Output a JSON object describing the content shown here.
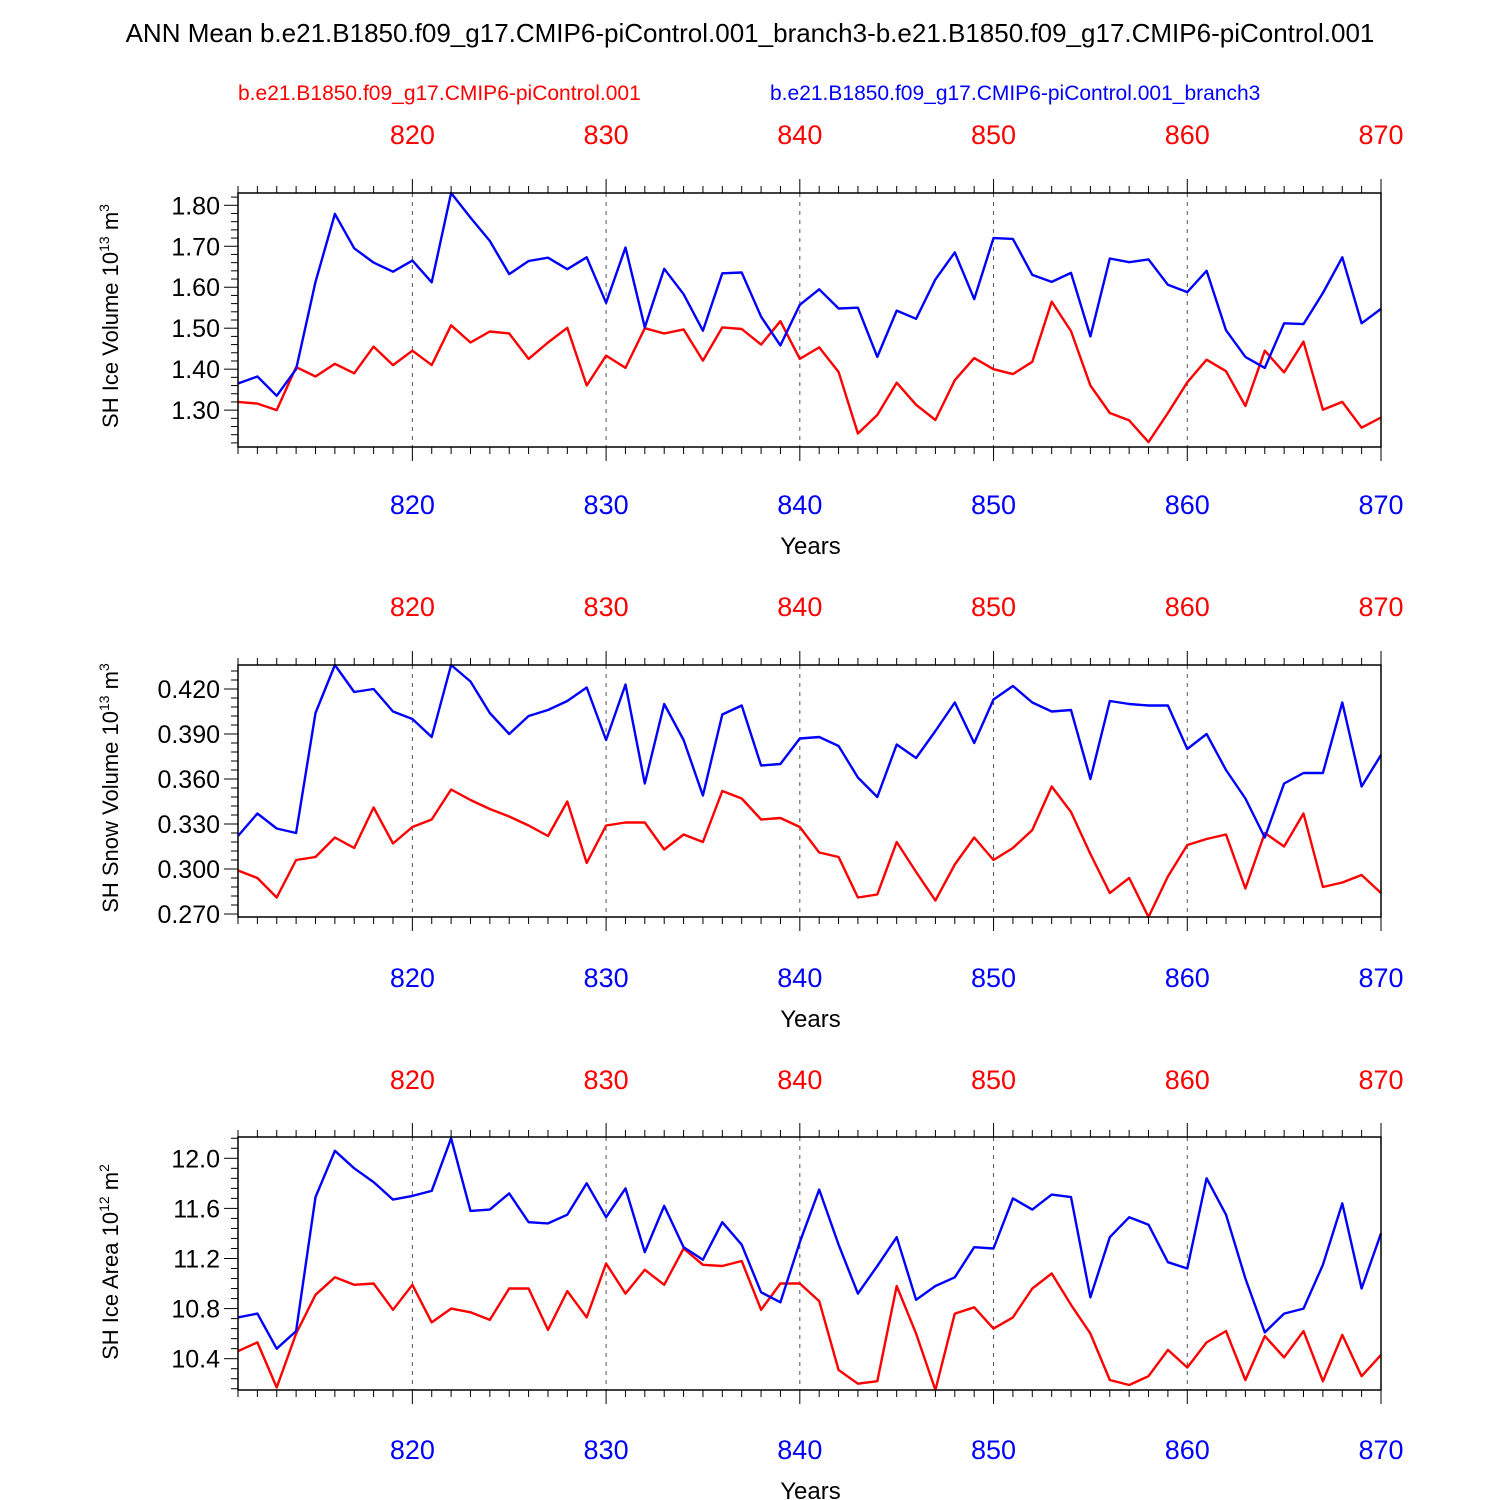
{
  "title": "ANN Mean b.e21.B1850.f09_g17.CMIP6-piControl.001_branch3-b.e21.B1850.f09_g17.CMIP6-piControl.001",
  "legend": {
    "red": "b.e21.B1850.f09_g17.CMIP6-piControl.001",
    "blue": "b.e21.B1850.f09_g17.CMIP6-piControl.001_branch3"
  },
  "colors": {
    "red": "#ff0000",
    "blue": "#0000ff",
    "grid": "#555555"
  },
  "chart_data": [
    {
      "type": "line",
      "ylabel_main": "SH Ice Volume 10",
      "ylabel_sup": "13",
      "ylabel_unit": " m",
      "ylabel_unit_sup": "3",
      "xlabel": "Years",
      "xlim": [
        811,
        870
      ],
      "ylim": [
        1.21,
        1.83
      ],
      "yticks": [
        1.3,
        1.4,
        1.5,
        1.6,
        1.7,
        1.8
      ],
      "ytick_labels": [
        "1.30",
        "1.40",
        "1.50",
        "1.60",
        "1.70",
        "1.80"
      ],
      "yminor_step": 0.02,
      "xticks": [
        820,
        830,
        840,
        850,
        860,
        870
      ],
      "xtick_labels": [
        "820",
        "830",
        "840",
        "850",
        "860",
        "870"
      ],
      "grid": "vertical dashed at major x ticks",
      "x": [
        811,
        812,
        813,
        814,
        815,
        816,
        817,
        818,
        819,
        820,
        821,
        822,
        823,
        824,
        825,
        826,
        827,
        828,
        829,
        830,
        831,
        832,
        833,
        834,
        835,
        836,
        837,
        838,
        839,
        840,
        841,
        842,
        843,
        844,
        845,
        846,
        847,
        848,
        849,
        850,
        851,
        852,
        853,
        854,
        855,
        856,
        857,
        858,
        859,
        860,
        861,
        862,
        863,
        864,
        865,
        866,
        867,
        868,
        869,
        870
      ],
      "series": [
        {
          "name": "b.e21.B1850.f09_g17.CMIP6-piControl.001",
          "color": "red",
          "values": [
            1.32,
            1.316,
            1.3,
            1.405,
            1.382,
            1.413,
            1.39,
            1.455,
            1.41,
            1.445,
            1.41,
            1.507,
            1.465,
            1.492,
            1.487,
            1.425,
            1.465,
            1.501,
            1.36,
            1.433,
            1.403,
            1.5,
            1.487,
            1.497,
            1.421,
            1.502,
            1.498,
            1.46,
            1.517,
            1.425,
            1.453,
            1.393,
            1.243,
            1.288,
            1.367,
            1.313,
            1.276,
            1.373,
            1.427,
            1.4,
            1.388,
            1.418,
            1.565,
            1.493,
            1.36,
            1.293,
            1.275,
            1.222,
            1.293,
            1.368,
            1.423,
            1.395,
            1.31,
            1.445,
            1.392,
            1.467,
            1.301,
            1.32,
            1.257,
            1.282
          ]
        },
        {
          "name": "b.e21.B1850.f09_g17.CMIP6-piControl.001_branch3",
          "color": "blue",
          "values": [
            1.365,
            1.382,
            1.335,
            1.4,
            1.613,
            1.779,
            1.695,
            1.66,
            1.638,
            1.665,
            1.612,
            1.83,
            1.77,
            1.713,
            1.632,
            1.664,
            1.672,
            1.644,
            1.673,
            1.562,
            1.697,
            1.502,
            1.645,
            1.583,
            1.494,
            1.634,
            1.636,
            1.528,
            1.458,
            1.557,
            1.595,
            1.548,
            1.55,
            1.43,
            1.543,
            1.523,
            1.619,
            1.685,
            1.571,
            1.72,
            1.718,
            1.63,
            1.613,
            1.635,
            1.48,
            1.67,
            1.661,
            1.668,
            1.606,
            1.588,
            1.64,
            1.495,
            1.43,
            1.403,
            1.512,
            1.51,
            1.586,
            1.673,
            1.512,
            1.547
          ]
        }
      ]
    },
    {
      "type": "line",
      "ylabel_main": "SH Snow Volume 10",
      "ylabel_sup": "13",
      "ylabel_unit": " m",
      "ylabel_unit_sup": "3",
      "xlabel": "Years",
      "xlim": [
        811,
        870
      ],
      "ylim": [
        0.268,
        0.436
      ],
      "yticks": [
        0.27,
        0.3,
        0.33,
        0.36,
        0.39,
        0.42
      ],
      "ytick_labels": [
        "0.270",
        "0.300",
        "0.330",
        "0.360",
        "0.390",
        "0.420"
      ],
      "yminor_step": 0.006,
      "xticks": [
        820,
        830,
        840,
        850,
        860,
        870
      ],
      "xtick_labels": [
        "820",
        "830",
        "840",
        "850",
        "860",
        "870"
      ],
      "grid": "vertical dashed at major x ticks",
      "x": [
        811,
        812,
        813,
        814,
        815,
        816,
        817,
        818,
        819,
        820,
        821,
        822,
        823,
        824,
        825,
        826,
        827,
        828,
        829,
        830,
        831,
        832,
        833,
        834,
        835,
        836,
        837,
        838,
        839,
        840,
        841,
        842,
        843,
        844,
        845,
        846,
        847,
        848,
        849,
        850,
        851,
        852,
        853,
        854,
        855,
        856,
        857,
        858,
        859,
        860,
        861,
        862,
        863,
        864,
        865,
        866,
        867,
        868,
        869,
        870
      ],
      "series": [
        {
          "name": "b.e21.B1850.f09_g17.CMIP6-piControl.001",
          "color": "red",
          "values": [
            0.299,
            0.294,
            0.281,
            0.306,
            0.308,
            0.321,
            0.314,
            0.341,
            0.317,
            0.328,
            0.333,
            0.353,
            0.346,
            0.34,
            0.335,
            0.329,
            0.322,
            0.345,
            0.304,
            0.329,
            0.331,
            0.331,
            0.313,
            0.323,
            0.318,
            0.352,
            0.347,
            0.333,
            0.334,
            0.328,
            0.311,
            0.308,
            0.281,
            0.283,
            0.318,
            0.298,
            0.279,
            0.303,
            0.321,
            0.306,
            0.314,
            0.326,
            0.355,
            0.338,
            0.31,
            0.284,
            0.294,
            0.268,
            0.295,
            0.316,
            0.32,
            0.323,
            0.287,
            0.324,
            0.315,
            0.337,
            0.288,
            0.291,
            0.296,
            0.284
          ]
        },
        {
          "name": "b.e21.B1850.f09_g17.CMIP6-piControl.001_branch3",
          "color": "blue",
          "values": [
            0.322,
            0.337,
            0.327,
            0.324,
            0.404,
            0.436,
            0.418,
            0.42,
            0.405,
            0.4,
            0.388,
            0.436,
            0.425,
            0.404,
            0.39,
            0.402,
            0.406,
            0.412,
            0.421,
            0.386,
            0.423,
            0.357,
            0.41,
            0.386,
            0.349,
            0.403,
            0.409,
            0.369,
            0.37,
            0.387,
            0.388,
            0.382,
            0.361,
            0.348,
            0.383,
            0.374,
            0.392,
            0.411,
            0.384,
            0.413,
            0.422,
            0.411,
            0.405,
            0.406,
            0.36,
            0.412,
            0.41,
            0.409,
            0.409,
            0.38,
            0.39,
            0.366,
            0.347,
            0.321,
            0.357,
            0.364,
            0.364,
            0.411,
            0.355,
            0.376
          ]
        }
      ]
    },
    {
      "type": "line",
      "ylabel_main": "SH Ice Area 10",
      "ylabel_sup": "12",
      "ylabel_unit": " m",
      "ylabel_unit_sup": "2",
      "xlabel": "Years",
      "xlim": [
        811,
        870
      ],
      "ylim": [
        10.15,
        12.17
      ],
      "yticks": [
        10.4,
        10.8,
        11.2,
        11.6,
        12.0
      ],
      "ytick_labels": [
        "10.4",
        "10.8",
        "11.2",
        "11.6",
        "12.0"
      ],
      "yminor_step": 0.08,
      "xticks": [
        820,
        830,
        840,
        850,
        860,
        870
      ],
      "xtick_labels": [
        "820",
        "830",
        "840",
        "850",
        "860",
        "870"
      ],
      "grid": "vertical dashed at major x ticks",
      "x": [
        811,
        812,
        813,
        814,
        815,
        816,
        817,
        818,
        819,
        820,
        821,
        822,
        823,
        824,
        825,
        826,
        827,
        828,
        829,
        830,
        831,
        832,
        833,
        834,
        835,
        836,
        837,
        838,
        839,
        840,
        841,
        842,
        843,
        844,
        845,
        846,
        847,
        848,
        849,
        850,
        851,
        852,
        853,
        854,
        855,
        856,
        857,
        858,
        859,
        860,
        861,
        862,
        863,
        864,
        865,
        866,
        867,
        868,
        869,
        870
      ],
      "series": [
        {
          "name": "b.e21.B1850.f09_g17.CMIP6-piControl.001",
          "color": "red",
          "values": [
            10.46,
            10.53,
            10.17,
            10.6,
            10.91,
            11.05,
            10.99,
            11.0,
            10.79,
            10.99,
            10.69,
            10.8,
            10.77,
            10.71,
            10.96,
            10.96,
            10.63,
            10.94,
            10.73,
            11.16,
            10.92,
            11.11,
            10.99,
            11.28,
            11.15,
            11.14,
            11.18,
            10.79,
            11.0,
            11.0,
            10.86,
            10.31,
            10.2,
            10.22,
            10.98,
            10.6,
            10.15,
            10.76,
            10.81,
            10.64,
            10.73,
            10.96,
            11.08,
            10.83,
            10.6,
            10.23,
            10.19,
            10.26,
            10.47,
            10.33,
            10.53,
            10.62,
            10.23,
            10.58,
            10.41,
            10.62,
            10.22,
            10.59,
            10.26,
            10.43
          ]
        },
        {
          "name": "b.e21.B1850.f09_g17.CMIP6-piControl.001_branch3",
          "color": "blue",
          "values": [
            10.73,
            10.76,
            10.48,
            10.62,
            11.69,
            12.06,
            11.92,
            11.81,
            11.67,
            11.7,
            11.74,
            12.16,
            11.58,
            11.59,
            11.72,
            11.49,
            11.48,
            11.55,
            11.8,
            11.53,
            11.76,
            11.25,
            11.62,
            11.29,
            11.19,
            11.49,
            11.31,
            10.93,
            10.85,
            11.33,
            11.75,
            11.31,
            10.92,
            11.14,
            11.37,
            10.87,
            10.98,
            11.05,
            11.29,
            11.28,
            11.68,
            11.59,
            11.71,
            11.69,
            10.89,
            11.37,
            11.53,
            11.47,
            11.17,
            11.12,
            11.84,
            11.55,
            11.04,
            10.61,
            10.76,
            10.8,
            11.15,
            11.64,
            10.96,
            11.4
          ]
        }
      ]
    }
  ]
}
